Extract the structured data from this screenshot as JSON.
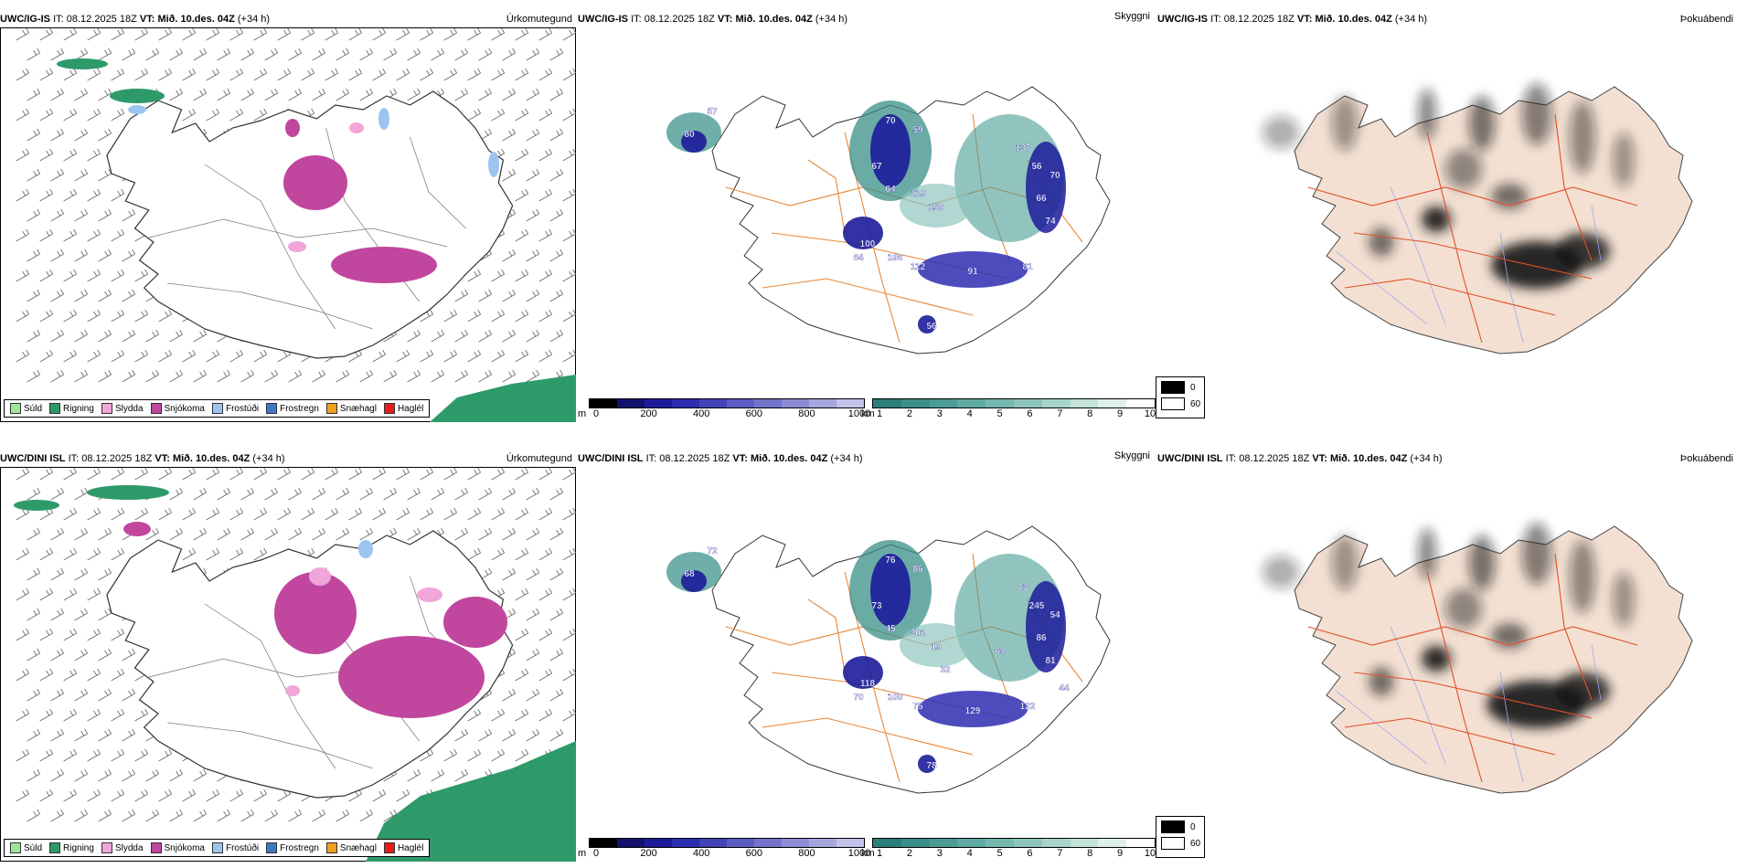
{
  "runs": [
    {
      "model": "UWC/IG-IS",
      "it_label": "IT:",
      "it_value": "08.12.2025 18Z",
      "vt_label": "VT:",
      "vt_value": "Mið. 10.des. 04Z",
      "lead": "(+34 h)"
    },
    {
      "model": "UWC/DINI ISL",
      "it_label": "IT:",
      "it_value": "08.12.2025 18Z",
      "vt_label": "VT:",
      "vt_value": "Mið. 10.des. 04Z",
      "lead": "(+34 h)"
    }
  ],
  "panels": {
    "precip": {
      "title": "Úrkomutegund"
    },
    "visibility": {
      "title": "Skyggni"
    },
    "fog": {
      "title": "Þokuábendi"
    }
  },
  "precip_legend": [
    {
      "label": "Súld",
      "color": "#9be89b"
    },
    {
      "label": "Rigning",
      "color": "#2e9a6a"
    },
    {
      "label": "Slydda",
      "color": "#f0a6d8"
    },
    {
      "label": "Snjókoma",
      "color": "#c0469e"
    },
    {
      "label": "Frostúði",
      "color": "#9cc4f0"
    },
    {
      "label": "Frostregn",
      "color": "#3b78c8"
    },
    {
      "label": "Snæhagl",
      "color": "#f0a020"
    },
    {
      "label": "Haglél",
      "color": "#e81c1c"
    }
  ],
  "vis_scale_m": {
    "unit": "m",
    "ticks": [
      "0",
      "200",
      "400",
      "600",
      "800",
      "1000"
    ],
    "colors": [
      "#000000",
      "#12126e",
      "#1c1c9a",
      "#2d2db0",
      "#4343b8",
      "#5c5cc4",
      "#7373cc",
      "#8c8cd6",
      "#a6a6de",
      "#c2c2ea"
    ]
  },
  "vis_scale_km": {
    "unit": "km",
    "ticks": [
      "1",
      "2",
      "3",
      "4",
      "5",
      "6",
      "7",
      "8",
      "9",
      "10"
    ],
    "colors": [
      "#2a7f7a",
      "#3a8f88",
      "#4a9c94",
      "#5eaaa2",
      "#76b8b0",
      "#8ec6be",
      "#a8d4cc",
      "#c2e2da",
      "#ddf0ea",
      "#ffffff"
    ]
  },
  "cloud_key": {
    "ticks": [
      "0",
      "60"
    ]
  },
  "vis_labels_top": [
    "80",
    "57",
    "70",
    "59",
    "67",
    "64",
    "119",
    "150",
    "56",
    "70",
    "66",
    "74",
    "100",
    "84",
    "196",
    "112",
    "81",
    "91",
    "137",
    "56"
  ],
  "vis_labels_bottom": [
    "68",
    "72",
    "76",
    "86",
    "73",
    "45",
    "201",
    "19",
    "245",
    "54",
    "86",
    "81",
    "118",
    "70",
    "100",
    "75",
    "122",
    "129",
    "83",
    "78",
    "64",
    "44",
    "32"
  ]
}
